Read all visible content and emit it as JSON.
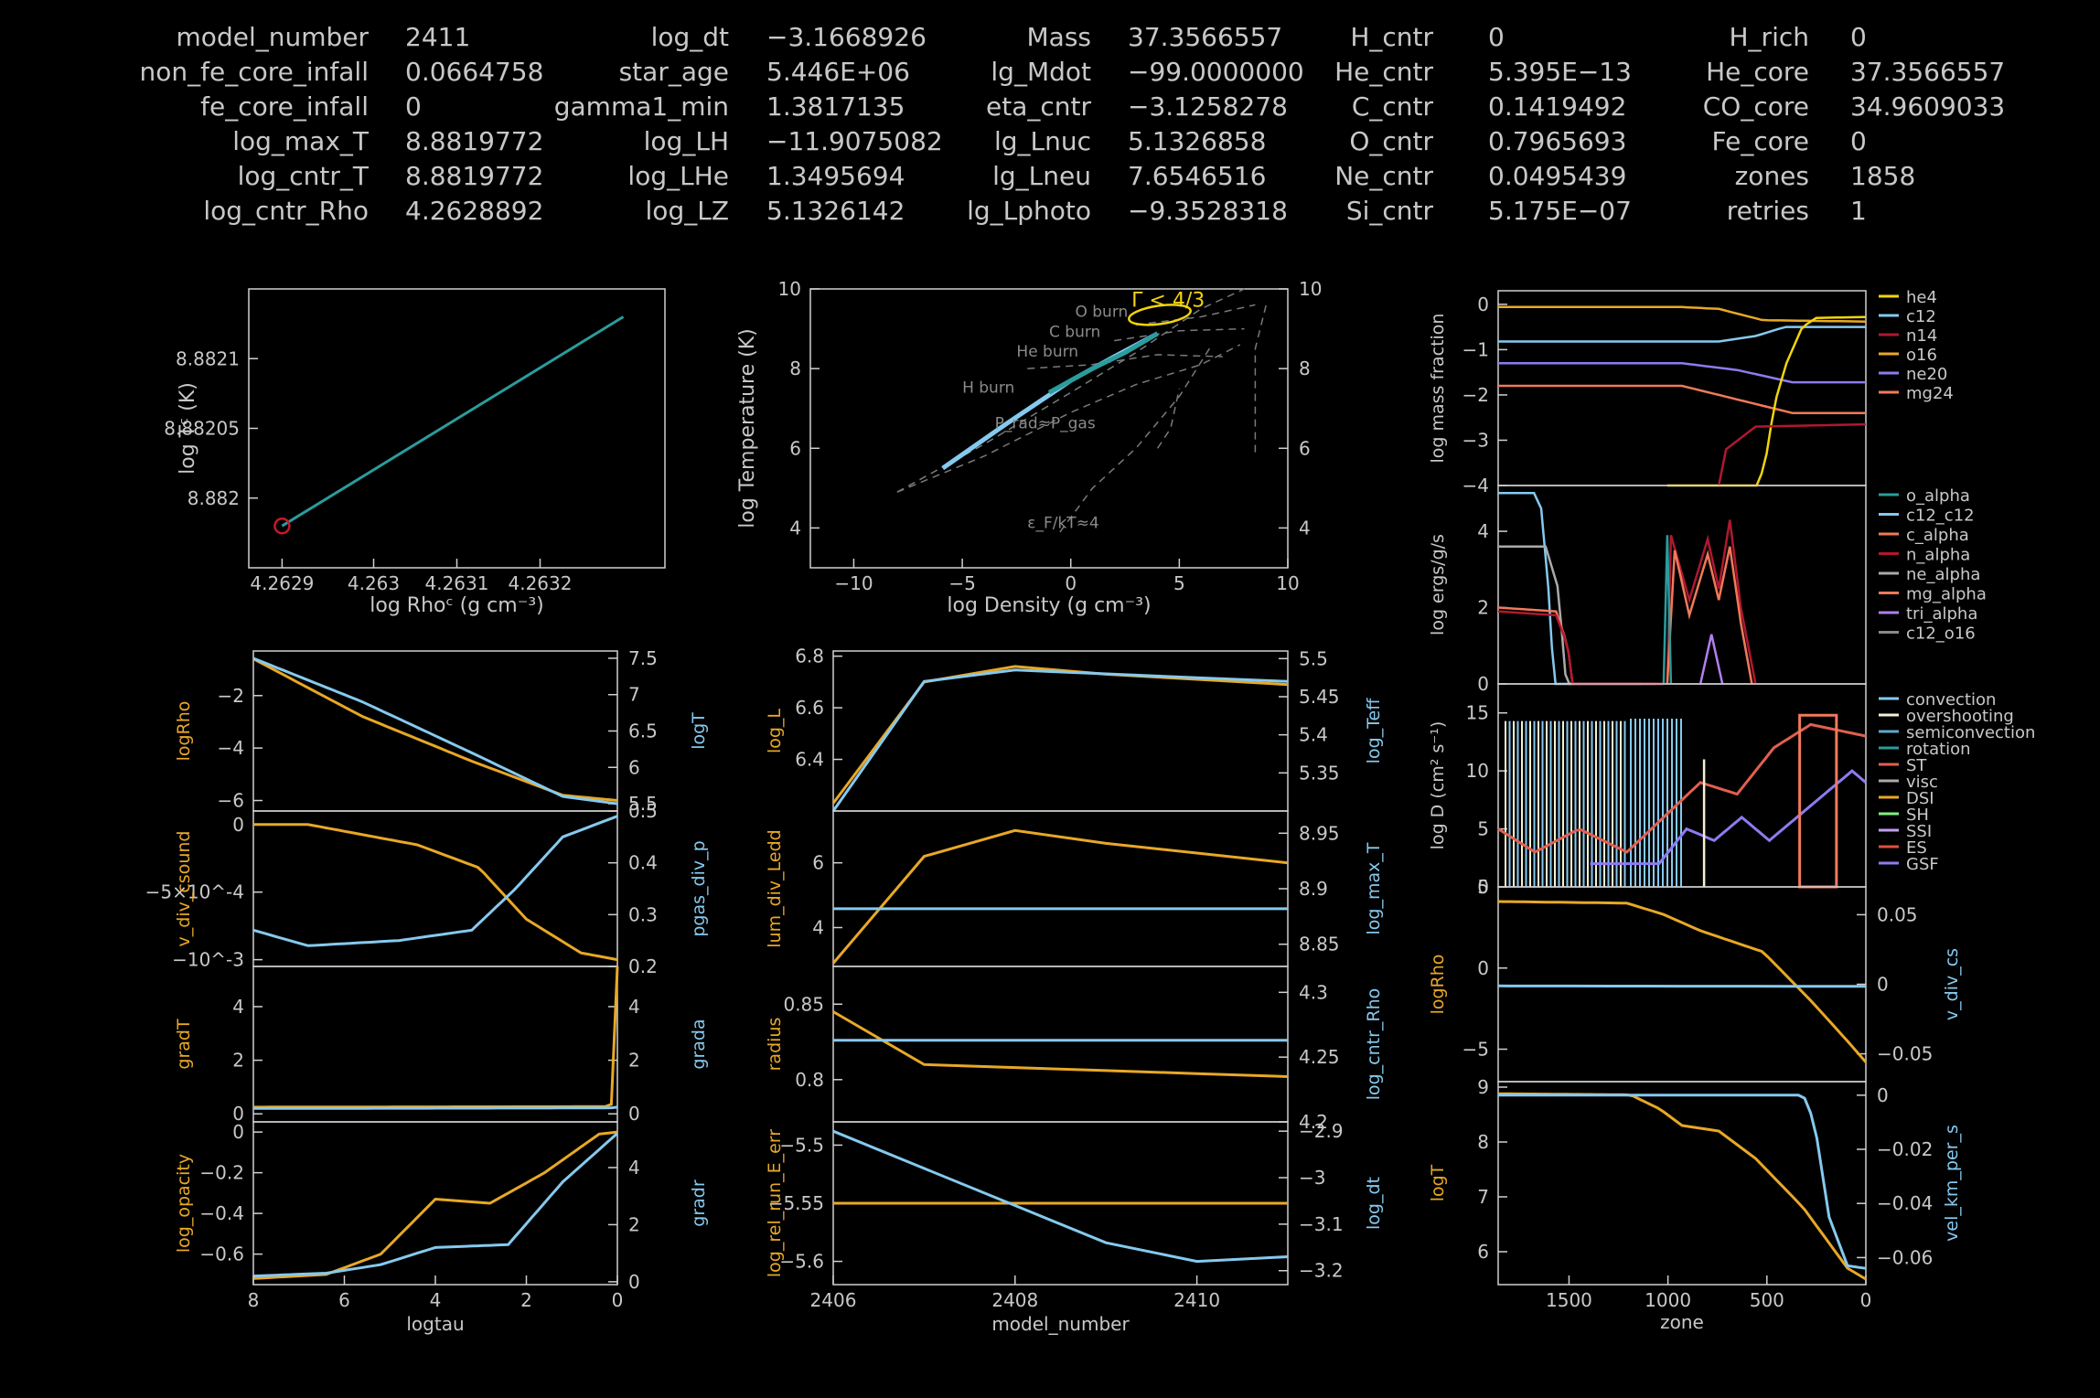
{
  "header": {
    "columns": [
      [
        [
          "model_number",
          "2411"
        ],
        [
          "non_fe_core_infall",
          "0.0664758"
        ],
        [
          "fe_core_infall",
          "0"
        ],
        [
          "log_max_T",
          "8.8819772"
        ],
        [
          "log_cntr_T",
          "8.8819772"
        ],
        [
          "log_cntr_Rho",
          "4.2628892"
        ]
      ],
      [
        [
          "log_dt",
          "−3.1668926"
        ],
        [
          "star_age",
          "5.446E+06"
        ],
        [
          "gamma1_min",
          "1.3817135"
        ],
        [
          "log_LH",
          "−11.9075082"
        ],
        [
          "log_LHe",
          "1.3495694"
        ],
        [
          "log_LZ",
          "5.1326142"
        ]
      ],
      [
        [
          "Mass",
          "37.3566557"
        ],
        [
          "lg_Mdot",
          "−99.0000000"
        ],
        [
          "eta_cntr",
          "−3.1258278"
        ],
        [
          "lg_Lnuc",
          "5.1326858"
        ],
        [
          "lg_Lneu",
          "7.6546516"
        ],
        [
          "lg_Lphoto",
          "−9.3528318"
        ]
      ],
      [
        [
          "H_cntr",
          "0"
        ],
        [
          "He_cntr",
          "5.395E−13"
        ],
        [
          "C_cntr",
          "0.1419492"
        ],
        [
          "O_cntr",
          "0.7965693"
        ],
        [
          "Ne_cntr",
          "0.0495439"
        ],
        [
          "Si_cntr",
          "5.175E−07"
        ]
      ],
      [
        [
          "H_rich",
          "0"
        ],
        [
          "He_core",
          "37.3566557"
        ],
        [
          "CO_core",
          "34.9609033"
        ],
        [
          "Fe_core",
          "0"
        ],
        [
          "zones",
          "1858"
        ],
        [
          "retries",
          "1"
        ]
      ]
    ]
  },
  "colors": {
    "orange": "#e8a826",
    "blue": "#86c9ef",
    "teal": "#2a9c9c",
    "red": "#c8182a",
    "gray": "#8a8a8a",
    "yellow": "#f2d40c",
    "purple": "#8f7af0",
    "salmon": "#f07a5a",
    "crimson": "#b01830"
  },
  "chart_data": [
    {
      "id": "trho",
      "type": "line",
      "xlabel": "log Rho_c (g cm^-3)",
      "ylabel": "log T_c (K)",
      "xticks": [
        "4.2629",
        "4.263",
        "4.2631",
        "4.2632"
      ],
      "yticks": [
        "8.882",
        "8.88205",
        "8.8821"
      ],
      "x": [
        4.26289,
        4.2633
      ],
      "y": [
        8.88198,
        8.88213
      ],
      "marker": "red circle at current model"
    },
    {
      "id": "hr",
      "type": "line",
      "xlabel": "log Density (g cm^-3)",
      "ylabel": "log Temperature (K)",
      "xticks": [
        "−10",
        "−5",
        "0",
        "5",
        "10"
      ],
      "yticks": [
        "4",
        "6",
        "8",
        "10"
      ],
      "annotations": [
        "Γ < 4/3",
        "O burn",
        "C burn",
        "He burn",
        "H burn",
        "P_rad≈P_gas",
        "ε_F/kT≈4"
      ],
      "profile": [
        [
          -5.9,
          5.5
        ],
        [
          -3,
          6.6
        ],
        [
          0,
          7.7
        ],
        [
          2,
          8.3
        ],
        [
          4,
          8.88
        ]
      ]
    },
    {
      "id": "abund",
      "type": "line",
      "ylabel": "log mass fraction",
      "ylim": [
        -4,
        0
      ],
      "xlim": [
        1858,
        0
      ],
      "legend": [
        "he4",
        "c12",
        "n14",
        "o16",
        "ne20",
        "mg24"
      ]
    },
    {
      "id": "eps",
      "type": "line",
      "ylabel": "log ergs/g/s",
      "yticks": [
        "0",
        "2",
        "4"
      ],
      "legend": [
        "o_alpha",
        "c12_c12",
        "c_alpha",
        "n_alpha",
        "ne_alpha",
        "mg_alpha",
        "tri_alpha",
        "c12_o16"
      ]
    },
    {
      "id": "mix",
      "type": "line",
      "ylabel": "log D (cm^2 s^-1)",
      "yticks": [
        "0",
        "5",
        "10",
        "15"
      ],
      "legend": [
        "convection",
        "overshooting",
        "semiconvection",
        "rotation",
        "ST",
        "visc",
        "DSI",
        "SH",
        "SSI",
        "ES",
        "GSF"
      ]
    },
    {
      "id": "rhovcs",
      "type": "line",
      "left_label": "logRho",
      "right_label": "v_div_cs",
      "yticks": [
        "−5",
        "0",
        "5"
      ],
      "y2ticks": [
        "−0.05",
        "0",
        "0.05"
      ]
    },
    {
      "id": "tvel",
      "type": "line",
      "left_label": "logT",
      "right_label": "vel_km_per_s",
      "xlabel": "zone",
      "xticks": [
        "1500",
        "1000",
        "500",
        "0"
      ],
      "yticks": [
        "6",
        "7",
        "8",
        "9"
      ],
      "y2ticks": [
        "−0.06",
        "−0.04",
        "−0.02",
        "0"
      ]
    },
    {
      "id": "hist1",
      "left_label": "log_L",
      "right_label": "log_Teff",
      "yticks": [
        "6.4",
        "6.6",
        "6.8"
      ],
      "y2ticks": [
        "5.4",
        "5.45",
        "5.5",
        "5.35"
      ],
      "x": [
        2406,
        2407,
        2408,
        2409,
        2410,
        2411
      ],
      "log_L": [
        6.23,
        6.7,
        6.76,
        6.73,
        6.71,
        6.69
      ],
      "log_Teff": [
        5.3,
        5.47,
        5.485,
        5.48,
        5.475,
        5.47
      ]
    },
    {
      "id": "hist2",
      "left_label": "lum_div_Ledd",
      "right_label": "log_max_T",
      "yticks": [
        "4",
        "6"
      ],
      "y2ticks": [
        "8.85",
        "8.9",
        "8.95"
      ],
      "x": [
        2406,
        2407,
        2408,
        2409,
        2410,
        2411
      ],
      "lum_div_Ledd": [
        2.9,
        6.2,
        7.0,
        6.6,
        6.3,
        6.0
      ],
      "log_max_T": [
        8.882,
        8.882,
        8.882,
        8.882,
        8.882,
        8.882
      ]
    },
    {
      "id": "hist3",
      "left_label": "radius",
      "right_label": "log_cntr_Rho",
      "yticks": [
        "0.8",
        "0.85"
      ],
      "y2ticks": [
        "4.2",
        "4.25",
        "4.3"
      ],
      "x": [
        2406,
        2407,
        2408,
        2409,
        2410,
        2411
      ],
      "radius": [
        0.845,
        0.81,
        0.808,
        0.806,
        0.804,
        0.802
      ],
      "log_cntr_Rho": [
        4.263,
        4.263,
        4.263,
        4.263,
        4.263,
        4.263
      ]
    },
    {
      "id": "hist4",
      "left_label": "log_rel_run_E_err",
      "right_label": "log_dt",
      "xlabel": "model_number",
      "yticks": [
        "−5.6",
        "−5.55",
        "−5.5"
      ],
      "y2ticks": [
        "−3.2",
        "−3.1",
        "−3",
        "−2.9"
      ],
      "xticks": [
        "2406",
        "2408",
        "2410"
      ],
      "x": [
        2406,
        2407,
        2408,
        2409,
        2410,
        2411
      ],
      "log_rel_run_E_err": [
        -5.55,
        -5.55,
        -5.55,
        -5.55,
        -5.55,
        -5.55
      ],
      "log_dt": [
        -2.9,
        -2.98,
        -3.06,
        -3.14,
        -3.18,
        -3.17
      ]
    },
    {
      "id": "prof1",
      "left_label": "logRho",
      "right_label": "logT",
      "yticks": [
        "−6",
        "−4",
        "−2"
      ],
      "y2ticks": [
        "5.5",
        "6",
        "6.5",
        "7",
        "7.5"
      ]
    },
    {
      "id": "prof2",
      "left_label": "v_div_csound",
      "right_label": "pgas_div_p",
      "yticks": [
        "−10^-3",
        "−5×10^-4",
        "0"
      ],
      "y2ticks": [
        "0.2",
        "0.3",
        "0.4",
        "0.5"
      ]
    },
    {
      "id": "prof3",
      "left_label": "gradT",
      "right_label": "grada",
      "yticks": [
        "0",
        "2",
        "4"
      ],
      "y2ticks": [
        "0",
        "2",
        "4"
      ]
    },
    {
      "id": "prof4",
      "left_label": "log_opacity",
      "right_label": "gradr",
      "xlabel": "logtau",
      "yticks": [
        "−0.6",
        "−0.4",
        "−0.2",
        "0"
      ],
      "y2ticks": [
        "0",
        "2",
        "4"
      ],
      "xticks": [
        "8",
        "6",
        "4",
        "2",
        "0"
      ]
    }
  ]
}
